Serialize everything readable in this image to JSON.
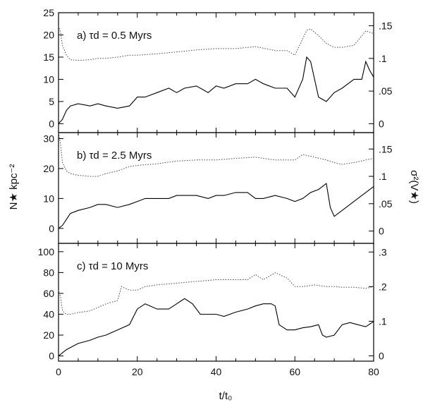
{
  "chart_data": {
    "type": "line",
    "layout": "three stacked panels sharing x-axis, dual y-axes",
    "xlabel": "t/t₀",
    "ylabel_left": "N★ kpc⁻²",
    "ylabel_right": "σ²(V★)",
    "xlim": [
      0,
      80
    ],
    "x_ticks": [
      "0",
      "20",
      "40",
      "60",
      "80"
    ],
    "grid": false,
    "series_styles": {
      "left_axis": "solid black",
      "right_axis": "dotted black"
    },
    "panels": [
      {
        "label": "a)  τd = 0.5 Myrs",
        "ylim_left": [
          -2,
          25
        ],
        "ylim_right": [
          -0.0136,
          0.17
        ],
        "left_ticks": [
          0,
          5,
          10,
          15,
          20,
          25
        ],
        "right_ticks": [
          {
            "v": 0,
            "t": "0"
          },
          {
            "v": 0.05,
            "t": ".05"
          },
          {
            "v": 0.1,
            "t": ".1"
          },
          {
            "v": 0.15,
            "t": ".15"
          }
        ],
        "solid_x": [
          0,
          1,
          2,
          3,
          5,
          8,
          10,
          12,
          15,
          18,
          20,
          22,
          25,
          28,
          30,
          32,
          35,
          38,
          40,
          42,
          45,
          48,
          50,
          52,
          55,
          58,
          60,
          62,
          63,
          64,
          65,
          66,
          68,
          70,
          72,
          75,
          77,
          78,
          79,
          80
        ],
        "solid_y": [
          0,
          1,
          3,
          4,
          4.5,
          4,
          4.5,
          4,
          3.5,
          4,
          6,
          6,
          7,
          8,
          7,
          8,
          8.5,
          7,
          8.5,
          8,
          9,
          9,
          10,
          9,
          8,
          8,
          6,
          10,
          15,
          14,
          10,
          6,
          5,
          7,
          8,
          10,
          10,
          14,
          12,
          10.5
        ],
        "dotted_x": [
          0,
          0.5,
          1,
          2,
          3,
          5,
          8,
          10,
          12,
          15,
          18,
          20,
          25,
          30,
          35,
          40,
          45,
          50,
          55,
          58,
          60,
          62,
          63,
          64,
          66,
          68,
          70,
          72,
          75,
          78,
          80
        ],
        "dotted_y": [
          0.15,
          0.14,
          0.12,
          0.105,
          0.098,
          0.097,
          0.098,
          0.1,
          0.1,
          0.102,
          0.105,
          0.105,
          0.107,
          0.11,
          0.113,
          0.115,
          0.115,
          0.118,
          0.112,
          0.112,
          0.105,
          0.13,
          0.143,
          0.145,
          0.135,
          0.123,
          0.117,
          0.117,
          0.12,
          0.142,
          0.138
        ]
      },
      {
        "label": "b)  τd = 2.5 Myrs",
        "ylim_left": [
          -5,
          32
        ],
        "ylim_right": [
          -0.0225,
          0.18
        ],
        "left_ticks": [
          0,
          10,
          20,
          30
        ],
        "right_ticks": [
          {
            "v": 0,
            "t": "0"
          },
          {
            "v": 0.05,
            "t": ".05"
          },
          {
            "v": 0.1,
            "t": ".1"
          },
          {
            "v": 0.15,
            "t": ".15"
          }
        ],
        "solid_x": [
          0,
          1,
          2,
          3,
          5,
          8,
          10,
          12,
          15,
          18,
          20,
          22,
          25,
          28,
          30,
          32,
          35,
          38,
          40,
          42,
          45,
          48,
          50,
          52,
          55,
          58,
          60,
          62,
          64,
          66,
          68,
          69,
          70,
          72,
          75,
          78,
          80
        ],
        "solid_y": [
          0,
          1,
          3,
          5,
          6,
          7,
          8,
          8,
          7,
          8,
          9,
          10,
          10,
          10,
          11,
          11,
          11,
          10,
          11,
          11,
          12,
          12,
          10,
          10,
          11,
          10,
          9,
          10,
          12,
          13,
          15,
          7,
          4,
          6,
          9,
          12,
          14
        ],
        "dotted_x": [
          0,
          0.5,
          1,
          2,
          3,
          5,
          8,
          10,
          12,
          15,
          18,
          20,
          25,
          30,
          35,
          40,
          45,
          50,
          55,
          60,
          62,
          65,
          68,
          70,
          72,
          75,
          78,
          80
        ],
        "dotted_y": [
          0.18,
          0.16,
          0.125,
          0.11,
          0.105,
          0.102,
          0.1,
          0.1,
          0.105,
          0.11,
          0.118,
          0.12,
          0.123,
          0.128,
          0.13,
          0.13,
          0.133,
          0.135,
          0.13,
          0.13,
          0.14,
          0.135,
          0.13,
          0.125,
          0.122,
          0.125,
          0.13,
          0.133
        ]
      },
      {
        "label": "c)  τd = 10 Myrs",
        "ylim_left": [
          -5,
          108
        ],
        "ylim_right": [
          -0.0153,
          0.325
        ],
        "left_ticks": [
          0,
          20,
          40,
          60,
          80,
          100
        ],
        "right_ticks": [
          {
            "v": 0,
            "t": "0"
          },
          {
            "v": 0.1,
            "t": ".1"
          },
          {
            "v": 0.2,
            "t": ".2"
          },
          {
            "v": 0.3,
            "t": ".3"
          }
        ],
        "solid_x": [
          0,
          1,
          2,
          3,
          5,
          8,
          10,
          12,
          15,
          18,
          20,
          22,
          25,
          28,
          30,
          32,
          34,
          36,
          38,
          40,
          42,
          45,
          48,
          50,
          52,
          54,
          55,
          56,
          58,
          60,
          62,
          64,
          66,
          67,
          68,
          70,
          72,
          74,
          76,
          78,
          80
        ],
        "solid_y": [
          0,
          3,
          6,
          8,
          12,
          15,
          18,
          20,
          25,
          30,
          45,
          50,
          45,
          45,
          50,
          55,
          50,
          40,
          40,
          40,
          38,
          42,
          45,
          48,
          50,
          50,
          48,
          30,
          25,
          25,
          27,
          28,
          30,
          20,
          18,
          20,
          30,
          32,
          30,
          28,
          33
        ],
        "dotted_x": [
          0,
          0.5,
          1,
          2,
          3,
          5,
          8,
          10,
          12,
          15,
          16,
          18,
          20,
          22,
          25,
          30,
          35,
          40,
          45,
          48,
          50,
          52,
          55,
          58,
          60,
          62,
          65,
          68,
          70,
          72,
          75,
          78,
          80
        ],
        "dotted_y": [
          0.19,
          0.17,
          0.13,
          0.12,
          0.12,
          0.125,
          0.13,
          0.14,
          0.15,
          0.16,
          0.2,
          0.19,
          0.19,
          0.2,
          0.205,
          0.21,
          0.215,
          0.22,
          0.22,
          0.22,
          0.235,
          0.22,
          0.24,
          0.225,
          0.2,
          0.2,
          0.205,
          0.2,
          0.2,
          0.198,
          0.198,
          0.195,
          0.2
        ]
      }
    ]
  }
}
